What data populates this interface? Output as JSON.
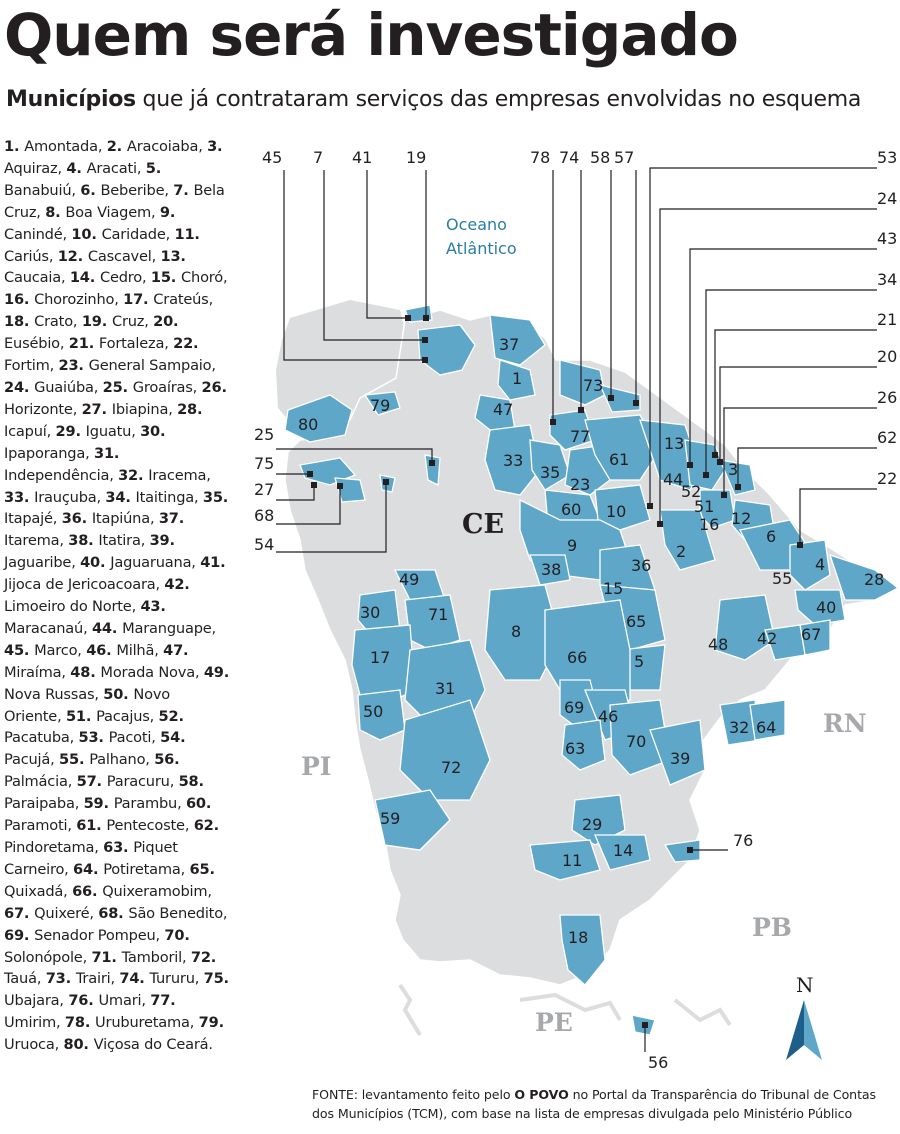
{
  "header": {
    "title": "Quem será investigado",
    "subtitle_bold": "Municípios",
    "subtitle_rest": " que já contrataram serviços das empresas envolvidas no esquema"
  },
  "colors": {
    "highlight": "#5ea7c9",
    "land": "#dcdddf",
    "border": "#ffffff",
    "accent": "#2a7ea5"
  },
  "municipalities": [
    {
      "n": "1",
      "name": "Amontada"
    },
    {
      "n": "2",
      "name": "Aracoiaba"
    },
    {
      "n": "3",
      "name": "Aquiraz"
    },
    {
      "n": "4",
      "name": "Aracati"
    },
    {
      "n": "5",
      "name": "Banabuiú"
    },
    {
      "n": "6",
      "name": "Beberibe"
    },
    {
      "n": "7",
      "name": "Bela Cruz"
    },
    {
      "n": "8",
      "name": "Boa Viagem"
    },
    {
      "n": "9",
      "name": "Canindé"
    },
    {
      "n": "10",
      "name": "Caridade"
    },
    {
      "n": "11",
      "name": "Cariús"
    },
    {
      "n": "12",
      "name": "Cascavel"
    },
    {
      "n": "13",
      "name": "Caucaia"
    },
    {
      "n": "14",
      "name": "Cedro"
    },
    {
      "n": "15",
      "name": "Choró"
    },
    {
      "n": "16",
      "name": "Chorozinho"
    },
    {
      "n": "17",
      "name": "Crateús"
    },
    {
      "n": "18",
      "name": "Crato"
    },
    {
      "n": "19",
      "name": "Cruz"
    },
    {
      "n": "20",
      "name": "Eusébio"
    },
    {
      "n": "21",
      "name": "Fortaleza"
    },
    {
      "n": "22",
      "name": "Fortim"
    },
    {
      "n": "23",
      "name": "General Sampaio"
    },
    {
      "n": "24",
      "name": "Guaiúba"
    },
    {
      "n": "25",
      "name": "Groaíras"
    },
    {
      "n": "26",
      "name": "Horizonte"
    },
    {
      "n": "27",
      "name": "Ibiapina"
    },
    {
      "n": "28",
      "name": "Icapuí"
    },
    {
      "n": "29",
      "name": "Iguatu"
    },
    {
      "n": "30",
      "name": "Ipaporanga"
    },
    {
      "n": "31",
      "name": "Independência"
    },
    {
      "n": "32",
      "name": "Iracema"
    },
    {
      "n": "33",
      "name": "Irauçuba"
    },
    {
      "n": "34",
      "name": "Itaitinga"
    },
    {
      "n": "35",
      "name": "Itapajé"
    },
    {
      "n": "36",
      "name": "Itapiúna"
    },
    {
      "n": "37",
      "name": "Itarema"
    },
    {
      "n": "38",
      "name": "Itatira"
    },
    {
      "n": "39",
      "name": "Jaguaribe"
    },
    {
      "n": "40",
      "name": "Jaguaruana"
    },
    {
      "n": "41",
      "name": "Jijoca de Jericoacoara"
    },
    {
      "n": "42",
      "name": "Limoeiro do Norte"
    },
    {
      "n": "43",
      "name": "Maracanaú"
    },
    {
      "n": "44",
      "name": "Maranguape"
    },
    {
      "n": "45",
      "name": "Marco"
    },
    {
      "n": "46",
      "name": "Milhã"
    },
    {
      "n": "47",
      "name": "Miraíma"
    },
    {
      "n": "48",
      "name": "Morada Nova"
    },
    {
      "n": "49",
      "name": "Nova Russas"
    },
    {
      "n": "50",
      "name": "Novo Oriente"
    },
    {
      "n": "51",
      "name": "Pacajus"
    },
    {
      "n": "52",
      "name": "Pacatuba"
    },
    {
      "n": "53",
      "name": "Pacoti"
    },
    {
      "n": "54",
      "name": "Pacujá"
    },
    {
      "n": "55",
      "name": "Palhano"
    },
    {
      "n": "56",
      "name": "Palmácia"
    },
    {
      "n": "57",
      "name": "Paracuru"
    },
    {
      "n": "58",
      "name": "Paraipaba"
    },
    {
      "n": "59",
      "name": "Parambu"
    },
    {
      "n": "60",
      "name": "Paramoti"
    },
    {
      "n": "61",
      "name": "Pentecoste"
    },
    {
      "n": "62",
      "name": "Pindoretama"
    },
    {
      "n": "63",
      "name": "Piquet Carneiro"
    },
    {
      "n": "64",
      "name": "Potiretama"
    },
    {
      "n": "65",
      "name": "Quixadá"
    },
    {
      "n": "66",
      "name": "Quixeramobim"
    },
    {
      "n": "67",
      "name": "Quixeré"
    },
    {
      "n": "68",
      "name": "São Benedito"
    },
    {
      "n": "69",
      "name": "Senador Pompeu"
    },
    {
      "n": "70",
      "name": "Solonópole"
    },
    {
      "n": "71",
      "name": "Tamboril"
    },
    {
      "n": "72",
      "name": "Tauá"
    },
    {
      "n": "73",
      "name": "Trairi"
    },
    {
      "n": "74",
      "name": "Tururu"
    },
    {
      "n": "75",
      "name": "Ubajara"
    },
    {
      "n": "76",
      "name": "Umari"
    },
    {
      "n": "77",
      "name": "Umirim"
    },
    {
      "n": "78",
      "name": "Uruburetama"
    },
    {
      "n": "79",
      "name": "Uruoca"
    },
    {
      "n": "80",
      "name": "Viçosa do Ceará"
    }
  ],
  "map": {
    "state_label": "CE",
    "neighbors": [
      "PI",
      "RN",
      "PB",
      "PE"
    ],
    "ocean_line1": "Oceano",
    "ocean_line2": "Atlântico",
    "north": "N",
    "inner_labels": [
      "1",
      "2",
      "3",
      "4",
      "5",
      "6",
      "8",
      "9",
      "10",
      "11",
      "12",
      "13",
      "14",
      "15",
      "16",
      "17",
      "18",
      "23",
      "28",
      "29",
      "30",
      "31",
      "32",
      "33",
      "35",
      "36",
      "37",
      "38",
      "39",
      "40",
      "42",
      "44",
      "46",
      "47",
      "48",
      "49",
      "50",
      "51",
      "52",
      "55",
      "59",
      "60",
      "61",
      "63",
      "64",
      "65",
      "66",
      "67",
      "69",
      "70",
      "71",
      "72",
      "73",
      "77",
      "79",
      "80"
    ],
    "callouts": [
      "45",
      "7",
      "41",
      "19",
      "78",
      "74",
      "58",
      "57",
      "53",
      "24",
      "43",
      "34",
      "21",
      "20",
      "26",
      "62",
      "22",
      "25",
      "75",
      "27",
      "68",
      "54",
      "76",
      "56"
    ]
  },
  "footer": {
    "prefix": "FONTE: levantamento feito pelo ",
    "bold": "O POVO",
    "suffix": " no Portal da Transparência do Tribunal de Contas dos Municípios (TCM), com base na lista de empresas divulgada pelo Ministério Público"
  }
}
